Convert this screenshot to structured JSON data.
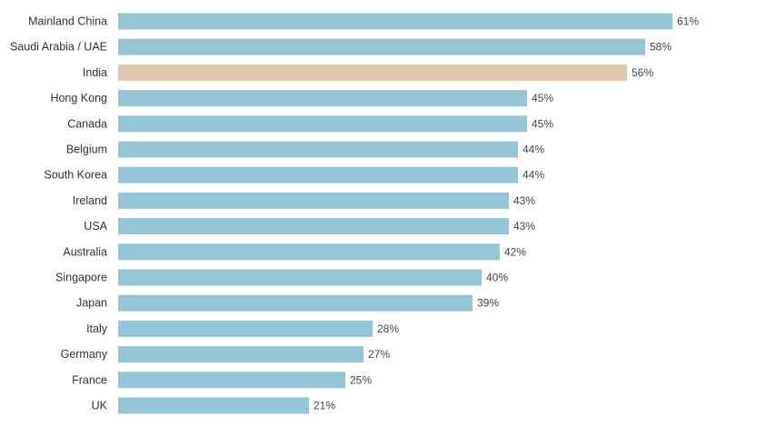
{
  "chart_data": {
    "type": "bar",
    "orientation": "horizontal",
    "categories": [
      "Mainland China",
      "Saudi Arabia / UAE",
      "India",
      "Hong Kong",
      "Canada",
      "Belgium",
      "South Korea",
      "Ireland",
      "USA",
      "Australia",
      "Singapore",
      "Japan",
      "Italy",
      "Germany",
      "France",
      "UK"
    ],
    "values": [
      61,
      58,
      56,
      45,
      45,
      44,
      44,
      43,
      43,
      42,
      40,
      39,
      28,
      27,
      25,
      21
    ],
    "value_labels": [
      "61%",
      "58%",
      "56%",
      "45%",
      "45%",
      "44%",
      "44%",
      "43%",
      "43%",
      "42%",
      "40%",
      "39%",
      "28%",
      "27%",
      "25%",
      "21%"
    ],
    "highlight_index": 2,
    "title": "",
    "xlabel": "",
    "ylabel": "",
    "xlim": [
      0,
      61
    ],
    "grid": false,
    "legend": "none",
    "colors": {
      "bar": "#96c6d6",
      "highlight": "#e1c7ae",
      "label_text": "#333333",
      "value_text": "#444444"
    }
  }
}
